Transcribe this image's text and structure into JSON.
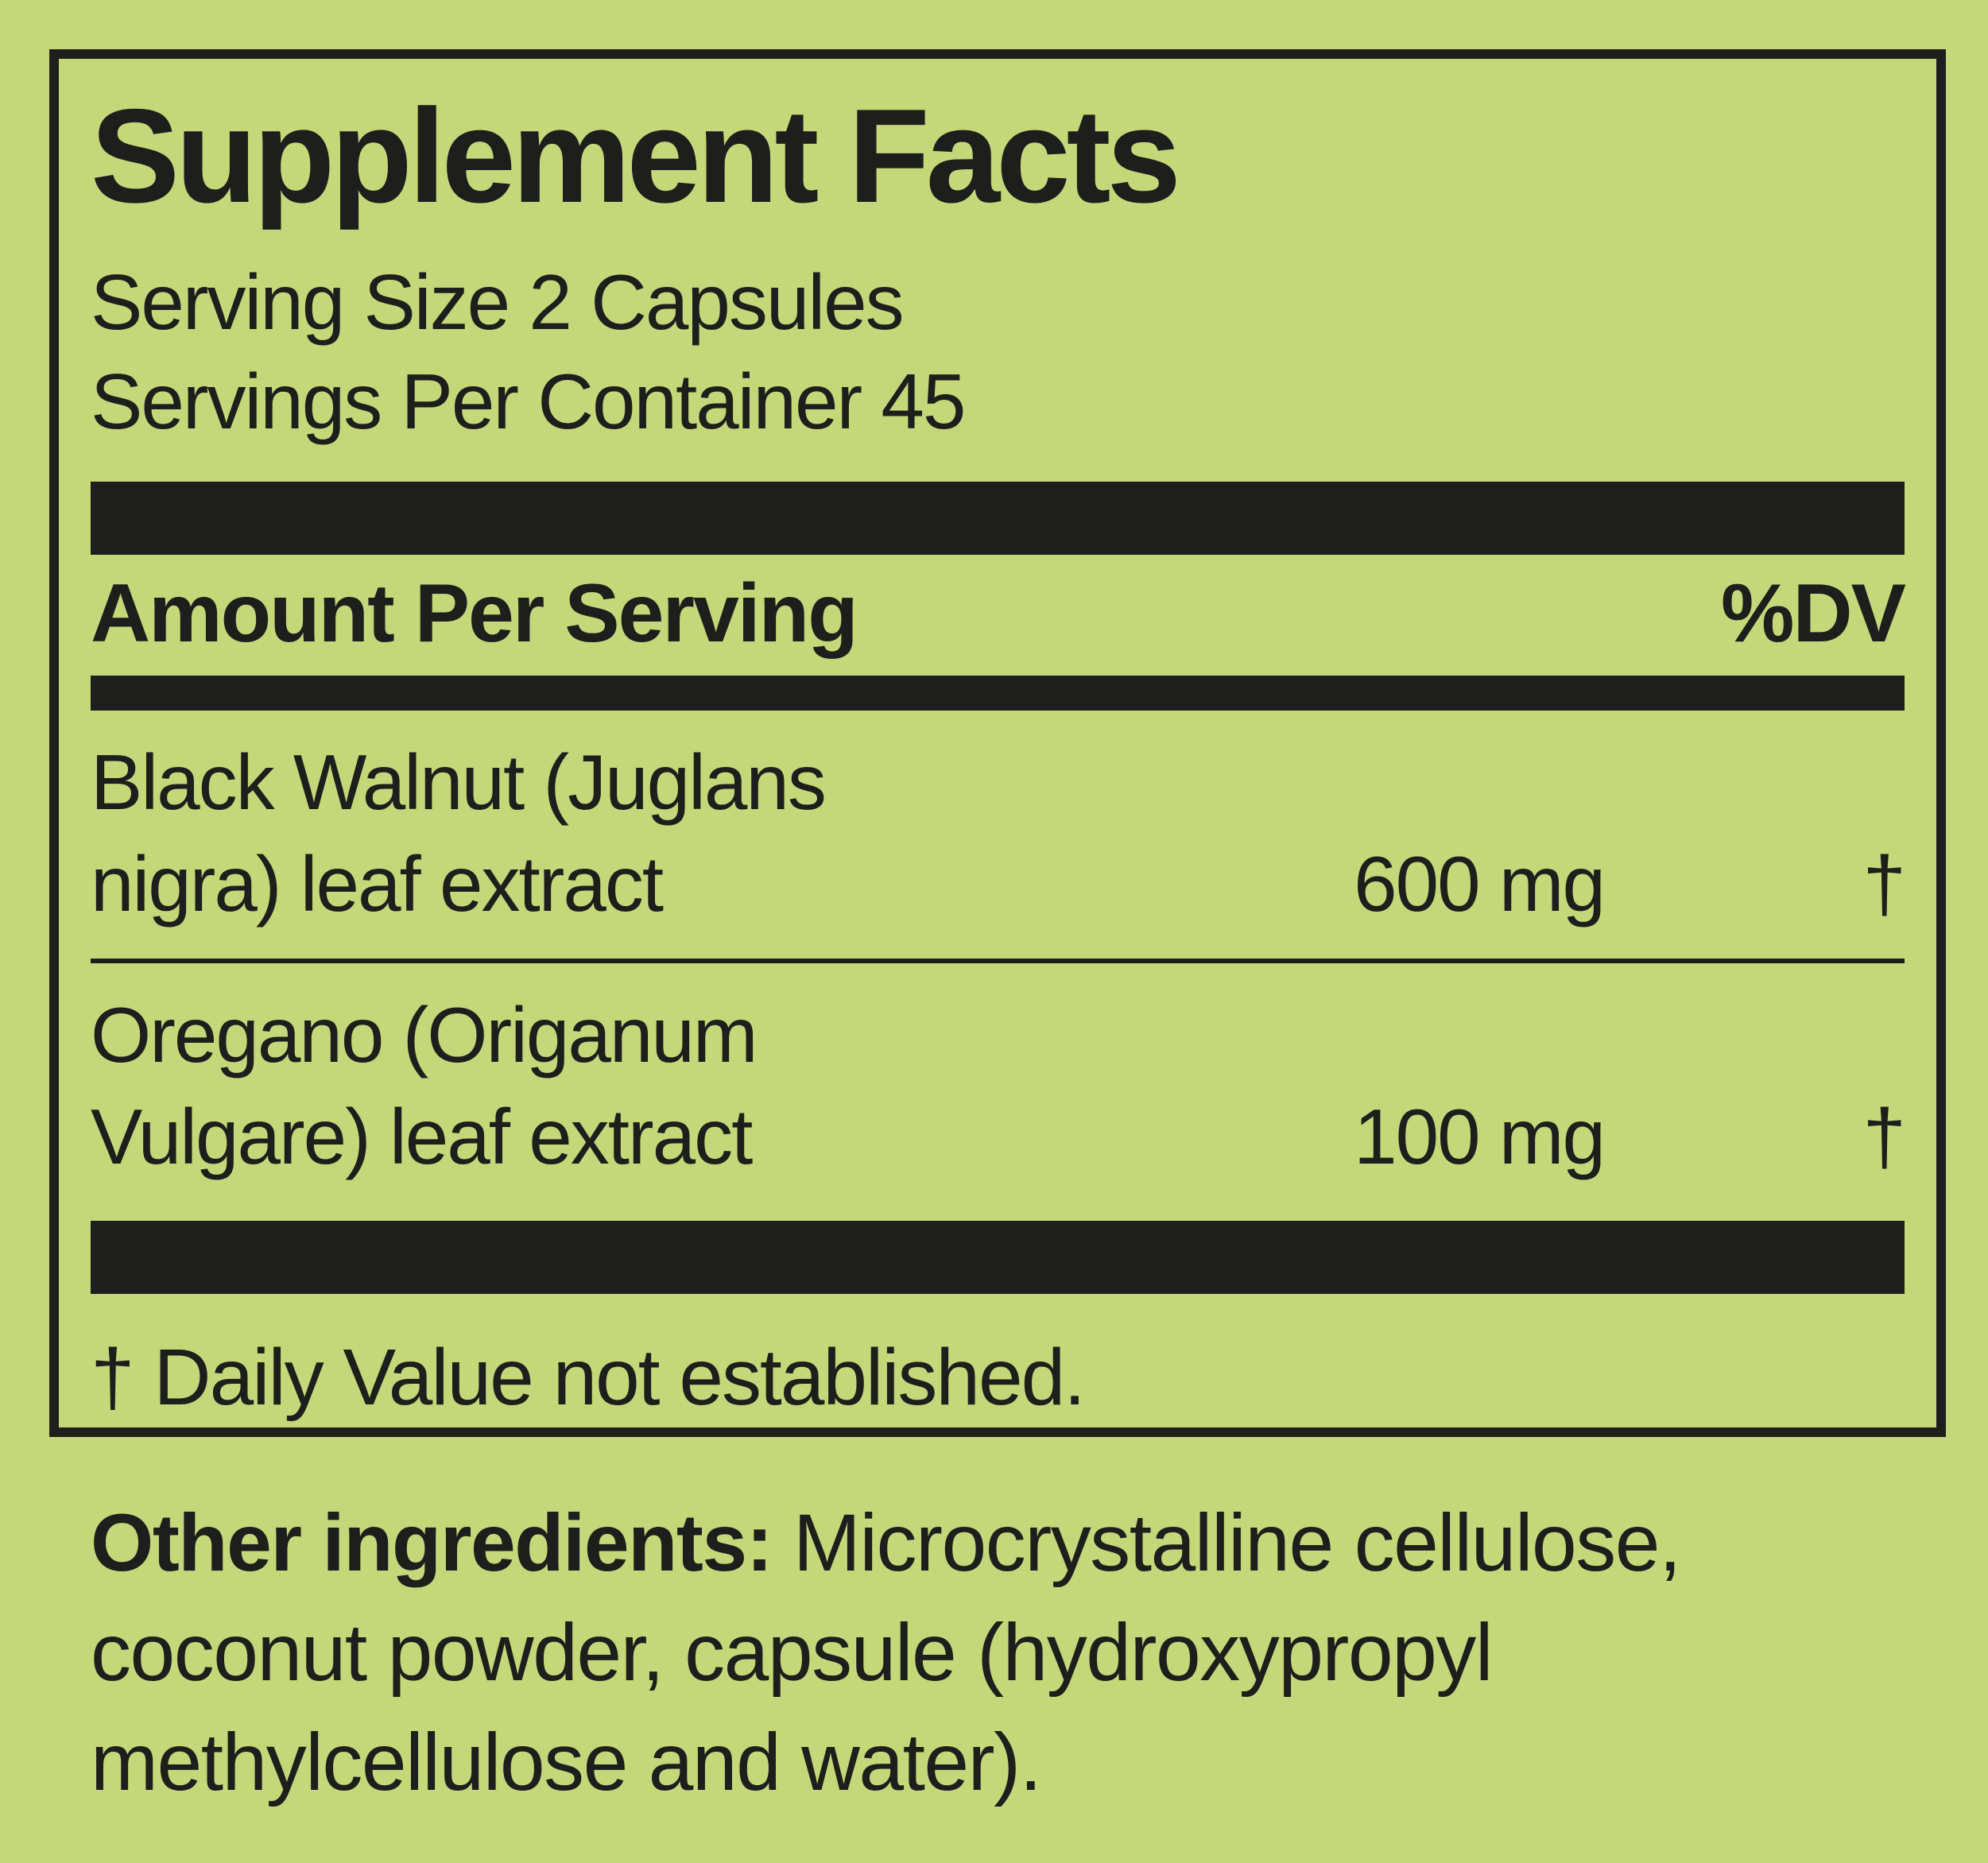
{
  "colors": {
    "background": "#c4d87a",
    "ink": "#1e1e1c"
  },
  "label": {
    "title": "Supplement Facts",
    "serving_size": "Serving Size 2 Capsules",
    "servings_per_container": "Servings Per Container 45",
    "header": {
      "amount_per_serving": "Amount Per Serving",
      "dv": "%DV"
    },
    "rows": [
      {
        "name": "Black Walnut (Juglans nigra) leaf extract",
        "name_lines": [
          "Black Walnut (Juglans",
          "nigra) leaf extract"
        ],
        "amount": "600 mg",
        "dv": "†"
      },
      {
        "name": "Oregano (Origanum Vulgare) leaf extract",
        "name_lines": [
          "Oregano (Origanum",
          "Vulgare) leaf extract"
        ],
        "amount": "100 mg",
        "dv": "†"
      }
    ],
    "footnote": "† Daily Value not established."
  },
  "other_ingredients": {
    "bold_label": "Other ingredients:",
    "line1_rest": " Microcrystalline cellulose,",
    "line2": "coconut powder, capsule (hydroxypropyl",
    "line3": "methylcellulose and water).",
    "full_text": "Other ingredients: Microcrystalline cellulose, coconut powder, capsule (hydroxypropyl methylcellulose and water)."
  }
}
